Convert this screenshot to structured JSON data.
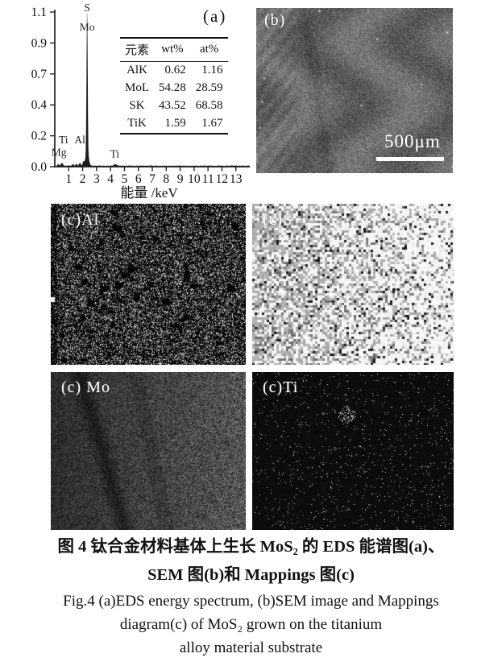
{
  "figure": {
    "panel_a_label": "(a)",
    "panel_b_label": "(b)",
    "scale_bar_text": "500μm",
    "map_labels": {
      "al": "(c)Al",
      "s": "(c)S",
      "mo": "(c) Mo",
      "ti": "(c)Ti"
    },
    "captions": {
      "cn_line1": "图 4  钛合金材料基体上生长 MoS₂ 的 EDS 能谱图(a)、",
      "cn_line2": "SEM 图(b)和 Mappings 图(c)",
      "en_line1": "Fig.4  (a)EDS energy spectrum, (b)SEM image and Mappings",
      "en_line2": "diagram(c) of MoS₂ grown on the titanium",
      "en_line3": "alloy material substrate"
    }
  },
  "eds_table": {
    "headers": [
      "元素",
      "wt%",
      "at%"
    ],
    "rows": [
      [
        "AlK",
        "0.62",
        "1.16"
      ],
      [
        "MoL",
        "54.28",
        "28.59"
      ],
      [
        "SK",
        "43.52",
        "68.58"
      ],
      [
        "TiK",
        "1.59",
        "1.67"
      ]
    ]
  },
  "chart_data": {
    "type": "line",
    "title": "EDS energy spectrum",
    "xlabel": "能量 /keV",
    "ylabel": "",
    "xlim": [
      0,
      14
    ],
    "ylim": [
      0,
      1.1
    ],
    "x_ticks": [
      1,
      2,
      3,
      4,
      5,
      6,
      7,
      8,
      9,
      10,
      11,
      12,
      13
    ],
    "y_tick_labels": [
      "0.0",
      "0.2",
      "0.4",
      "0.7",
      "0.9",
      "1.1"
    ],
    "grid": false,
    "legend": "none",
    "series_color": "#1c1c1c",
    "annotations": [
      {
        "text": "S",
        "x": 2.32,
        "y": 1.13
      },
      {
        "text": "Mo",
        "x": 2.32,
        "y": 0.99
      },
      {
        "text": "Ti",
        "x": 0.62,
        "y": 0.19
      },
      {
        "text": "Mg",
        "x": 0.3,
        "y": 0.1
      },
      {
        "text": "Al",
        "x": 1.8,
        "y": 0.19
      },
      {
        "text": "Ti",
        "x": 4.3,
        "y": 0.09
      }
    ],
    "curve_peaks": [
      {
        "x": 2.32,
        "h": 1.04,
        "w": 0.04
      },
      {
        "x": 2.32,
        "h": 0.1,
        "w": 0.11
      },
      {
        "x": 0.25,
        "h": 0.012,
        "w": 0.05
      },
      {
        "x": 0.52,
        "h": 0.02,
        "w": 0.07
      },
      {
        "x": 1.3,
        "h": 0.012,
        "w": 0.05
      },
      {
        "x": 1.55,
        "h": 0.015,
        "w": 0.05
      },
      {
        "x": 1.8,
        "h": 0.02,
        "w": 0.06
      },
      {
        "x": 2.05,
        "h": 0.028,
        "w": 0.05
      },
      {
        "x": 4.35,
        "h": 0.012,
        "w": 0.1
      }
    ]
  },
  "colors": {
    "text": "#111111",
    "axis": "#222222",
    "curve_fill": "#1c1c1c"
  }
}
